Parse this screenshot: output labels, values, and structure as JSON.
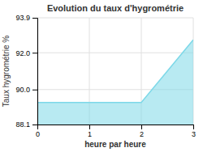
{
  "chart_data": {
    "type": "area",
    "title": "Evolution du taux d'hygrométrie",
    "xlabel": "heure par heure",
    "ylabel": "Taux hygrométrie %",
    "x": [
      0,
      2,
      3
    ],
    "values": [
      89.3,
      89.3,
      92.7
    ],
    "color": "#7dd8e8",
    "xlim": [
      0,
      3
    ],
    "ylim": [
      88.1,
      93.9
    ],
    "xticks": [
      0,
      1,
      2,
      3
    ],
    "yticks": [
      88.1,
      {
        "value": 90.0,
        "label": "90.0"
      },
      {
        "value": 92.0,
        "label": "92.0"
      },
      93.9
    ],
    "grid": true
  }
}
